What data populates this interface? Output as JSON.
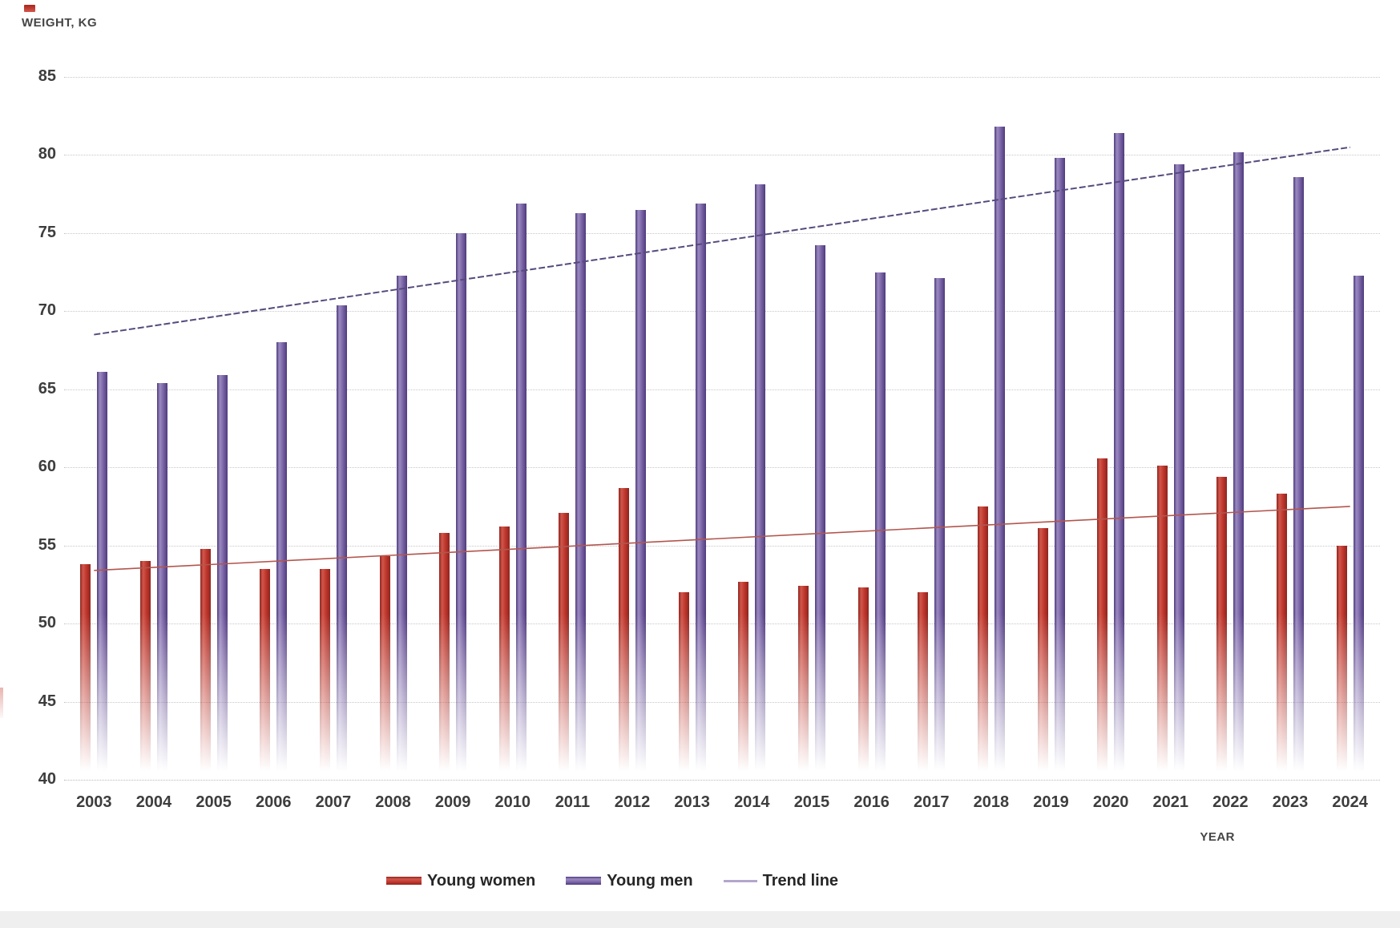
{
  "page": {
    "background": "#ffffff",
    "footer_strip_color": "#efeff0"
  },
  "chart_data": {
    "type": "bar",
    "title": "WEIGHT, KG",
    "xlabel": "YEAR",
    "ylabel": "WEIGHT, KG",
    "ylim": [
      40,
      85
    ],
    "ytick_step": 5,
    "grid": "horizontal-dotted",
    "legend_position": "bottom-center",
    "categories": [
      2003,
      2004,
      2005,
      2006,
      2007,
      2008,
      2009,
      2010,
      2011,
      2012,
      2013,
      2014,
      2015,
      2016,
      2017,
      2018,
      2019,
      2020,
      2021,
      2022,
      2023,
      2024
    ],
    "series": [
      {
        "name": "Young women",
        "color": "#bd352b",
        "values": [
          53.8,
          54.0,
          54.8,
          53.5,
          53.5,
          54.3,
          55.8,
          56.2,
          57.1,
          58.7,
          52.0,
          52.7,
          52.4,
          52.3,
          52.0,
          57.5,
          56.1,
          60.6,
          60.1,
          59.4,
          58.3,
          55.0
        ]
      },
      {
        "name": "Young men",
        "color": "#7862a4",
        "values": [
          66.1,
          65.4,
          65.9,
          68.0,
          70.4,
          72.3,
          75.0,
          76.9,
          76.3,
          76.5,
          76.9,
          78.1,
          74.2,
          72.5,
          72.1,
          81.8,
          79.8,
          81.4,
          79.4,
          80.2,
          78.6,
          72.3
        ]
      }
    ],
    "trend_lines": [
      {
        "name": "Trend line (men)",
        "applies_to": "Young men",
        "start_value": 68.5,
        "end_value": 80.5,
        "color": "#564a7d",
        "style": "dashed"
      },
      {
        "name": "Trend line (women)",
        "applies_to": "Young women",
        "start_value": 53.4,
        "end_value": 57.5,
        "color": "#b2564e",
        "style": "solid"
      }
    ],
    "legend": [
      "Young women",
      "Young men",
      "Trend line"
    ]
  }
}
